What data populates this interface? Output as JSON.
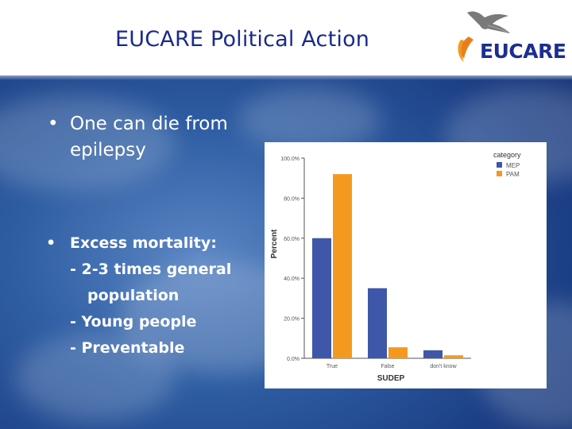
{
  "slide": {
    "title": "EUCARE Political Action",
    "logo_text": "EUCARE",
    "bullet_1": {
      "symbol": "•",
      "lines": [
        "One can die from",
        "epilepsy"
      ]
    },
    "bullet_2": {
      "symbol": "•",
      "lines": [
        "Excess mortality:",
        "- 2-3 times general",
        "population",
        "- Young people",
        "- Preventable"
      ]
    }
  },
  "chart_data": {
    "type": "bar",
    "categories": [
      "True",
      "False",
      "don't know"
    ],
    "series": [
      {
        "name": "MEP",
        "values": [
          60,
          35,
          4
        ],
        "color": "#3f57a8"
      },
      {
        "name": "PAM",
        "values": [
          92,
          5.5,
          1.5
        ],
        "color": "#f39a1e"
      }
    ],
    "xlabel": "SUDEP",
    "ylabel": "Percent",
    "ylim": [
      0,
      100
    ],
    "yticks": [
      0,
      20,
      40,
      60,
      80,
      100
    ],
    "ytick_labels": [
      "0.0%",
      "20.0%",
      "40.0%",
      "60.0%",
      "80.0%",
      "100.0%"
    ],
    "legend_title": "category",
    "legend_position": "top-right",
    "grid": false
  }
}
